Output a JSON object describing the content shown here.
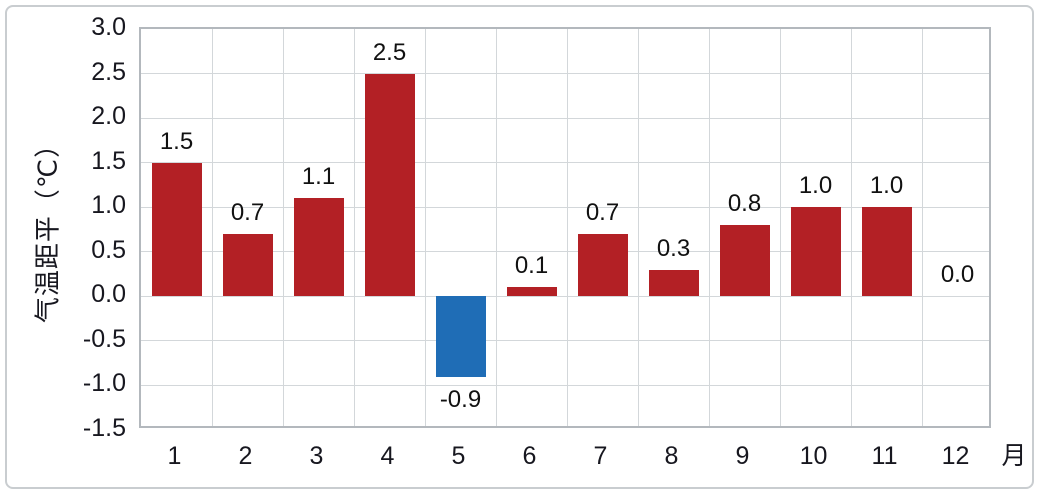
{
  "chart_data": {
    "type": "bar",
    "title": "",
    "categories": [
      "1",
      "2",
      "3",
      "4",
      "5",
      "6",
      "7",
      "8",
      "9",
      "10",
      "11",
      "12"
    ],
    "values": [
      1.5,
      0.7,
      1.1,
      2.5,
      -0.9,
      0.1,
      0.7,
      0.3,
      0.8,
      1.0,
      1.0,
      0.0
    ],
    "bar_labels": [
      "1.5",
      "0.7",
      "1.1",
      "2.5",
      "-0.9",
      "0.1",
      "0.7",
      "0.3",
      "0.8",
      "1.0",
      "1.0",
      "0.0"
    ],
    "ylabel": "气温距平（℃）",
    "xlabel": "",
    "x_unit": "月",
    "ylim": [
      -1.5,
      3.0
    ],
    "ytick_labels": [
      "3.0",
      "2.5",
      "2.0",
      "1.5",
      "1.0",
      "0.5",
      "0.0",
      "-0.5",
      "-1.0",
      "-1.5"
    ],
    "grid": true,
    "legend_position": "none",
    "colors": {
      "positive": "#b32025",
      "negative": "#1f6db6"
    }
  }
}
